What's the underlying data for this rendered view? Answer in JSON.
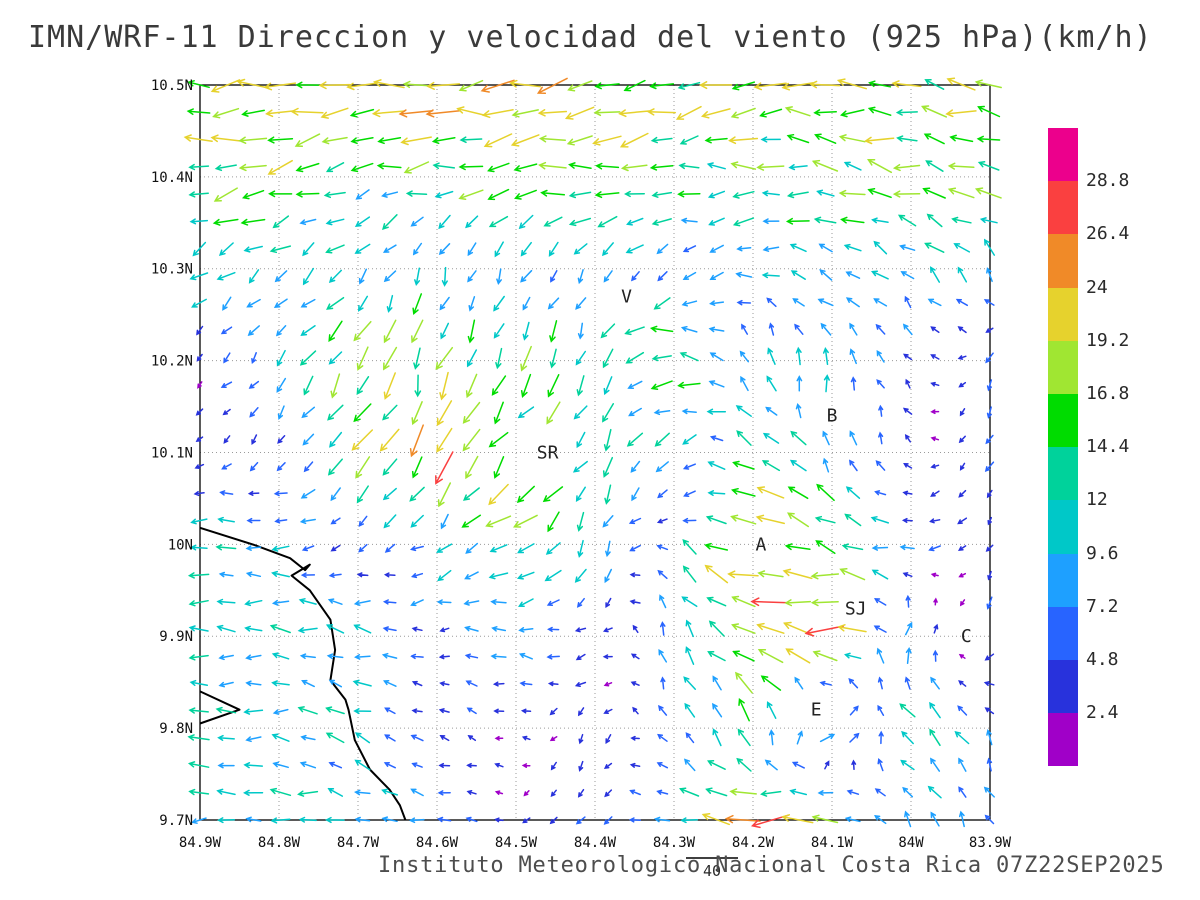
{
  "title": "IMN/WRF-11 Direccion y velocidad del viento (925 hPa)(km/h)",
  "footer": "Instituto Meteorologico Nacional Costa Rica 07Z22SEP2025",
  "chart_data": {
    "type": "vector_field",
    "title": "IMN/WRF-11 Direccion y velocidad del viento (925 hPa)(km/h)",
    "units": "km/h",
    "level": "925 hPa",
    "grid": true,
    "x_axis": {
      "tick_labels": [
        "84.9W",
        "84.8W",
        "84.7W",
        "84.6W",
        "84.5W",
        "84.4W",
        "84.3W",
        "84.2W",
        "84.1W",
        "84W",
        "83.9W"
      ],
      "tick_lon_w": [
        84.9,
        84.8,
        84.7,
        84.6,
        84.5,
        84.4,
        84.3,
        84.2,
        84.1,
        84.0,
        83.9
      ]
    },
    "y_axis": {
      "tick_labels": [
        "10.5N",
        "10.4N",
        "10.3N",
        "10.2N",
        "10.1N",
        "10N",
        "9.9N",
        "9.8N",
        "9.7N"
      ],
      "tick_lat_n": [
        10.5,
        10.4,
        10.3,
        10.2,
        10.1,
        10.0,
        9.9,
        9.8,
        9.7
      ]
    },
    "colorbar_labels_top_to_bottom": [
      "28.8",
      "26.4",
      "24",
      "19.2",
      "16.8",
      "14.4",
      "12",
      "9.6",
      "7.2",
      "4.8",
      "2.4"
    ],
    "speed_levels_kmh": [
      2.4,
      4.8,
      7.2,
      9.6,
      12,
      14.4,
      16.8,
      19.2,
      24,
      26.4,
      28.8
    ],
    "speed_colors_low_to_high": [
      "#a000c8",
      "#2832dc",
      "#2864ff",
      "#1ea0ff",
      "#00c8c8",
      "#00d29b",
      "#00dc00",
      "#a0e632",
      "#e6d22d",
      "#f08a28",
      "#fa4040",
      "#ec008c"
    ],
    "reference_vector": {
      "label": "40",
      "value_kmh": 40
    },
    "stations": [
      {
        "label": "V",
        "lon_w": 84.36,
        "lat_n": 10.27
      },
      {
        "label": "B",
        "lon_w": 84.1,
        "lat_n": 10.14
      },
      {
        "label": "SR",
        "lon_w": 84.46,
        "lat_n": 10.1
      },
      {
        "label": "A",
        "lon_w": 84.19,
        "lat_n": 10.0
      },
      {
        "label": "SJ",
        "lon_w": 84.07,
        "lat_n": 9.93
      },
      {
        "label": "C",
        "lon_w": 83.93,
        "lat_n": 9.9
      },
      {
        "label": "E",
        "lon_w": 84.12,
        "lat_n": 9.82
      }
    ],
    "coastline_w_n": [
      [
        [
          84.9,
          10.018
        ],
        [
          84.83,
          9.999
        ],
        [
          84.786,
          9.985
        ],
        [
          84.767,
          9.972
        ],
        [
          84.761,
          9.978
        ],
        [
          84.784,
          9.966
        ],
        [
          84.761,
          9.95
        ],
        [
          84.735,
          9.918
        ],
        [
          84.729,
          9.885
        ],
        [
          84.735,
          9.852
        ],
        [
          84.716,
          9.831
        ],
        [
          84.712,
          9.82
        ],
        [
          84.704,
          9.787
        ],
        [
          84.685,
          9.755
        ],
        [
          84.66,
          9.733
        ],
        [
          84.647,
          9.716
        ],
        [
          84.64,
          9.7
        ]
      ],
      [
        [
          84.9,
          9.84
        ],
        [
          84.85,
          9.82
        ],
        [
          84.9,
          9.805
        ]
      ]
    ],
    "wind_grid": {
      "lon_w": [
        84.9,
        84.8,
        84.7,
        84.6,
        84.5,
        84.4,
        84.3,
        84.2,
        84.1,
        84.0,
        83.9
      ],
      "lat_n": [
        10.5,
        10.4,
        10.3,
        10.2,
        10.1,
        10.0,
        9.9,
        9.8,
        9.7
      ],
      "u_kmh": [
        [
          -20,
          -20,
          -21,
          -21,
          -20,
          -20,
          -19,
          -19,
          -18,
          -18,
          -18
        ],
        [
          -16,
          -15,
          -14,
          -15,
          -16,
          -16,
          -15,
          -14,
          -14,
          -15,
          -16
        ],
        [
          -9,
          -8,
          -5,
          -3,
          -4,
          -5,
          -6,
          -8,
          -10,
          -8,
          -4
        ],
        [
          -2,
          -5,
          -10,
          -5,
          -7,
          -5,
          -18,
          -2,
          -2,
          -3,
          -2
        ],
        [
          -2,
          -4,
          -9,
          -6,
          -12,
          -6,
          -5,
          -12,
          -3,
          -2,
          -2
        ],
        [
          -10,
          -9,
          -3,
          -8,
          -14,
          -4,
          -6,
          -22,
          -18,
          -6,
          -2
        ],
        [
          -11,
          -11,
          -10,
          -4,
          -9,
          -3,
          -2,
          -22,
          -26,
          6,
          -3
        ],
        [
          -11,
          -11,
          -9,
          -4,
          -2,
          -2,
          -3,
          -4,
          14,
          -10,
          -4
        ],
        [
          -11,
          -11,
          -9,
          -6,
          -2,
          -3,
          -8,
          -26,
          -14,
          -4,
          -3
        ]
      ],
      "v_kmh": [
        [
          -2,
          -2,
          -1,
          -1,
          -2,
          -3,
          -3,
          -2,
          0,
          2,
          3
        ],
        [
          -4,
          -4,
          -3,
          -3,
          -3,
          -2,
          -2,
          0,
          3,
          4,
          5
        ],
        [
          -6,
          -7,
          -7,
          -8,
          -8,
          -7,
          -4,
          0,
          4,
          7,
          8
        ],
        [
          -2,
          -6,
          -14,
          -16,
          -13,
          -11,
          2,
          8,
          10,
          4,
          -5
        ],
        [
          -2,
          -4,
          -12,
          -24,
          -12,
          -10,
          -8,
          6,
          10,
          2,
          -5
        ],
        [
          2,
          1,
          -2,
          -4,
          -6,
          -10,
          4,
          8,
          6,
          -2,
          -2
        ],
        [
          0,
          0,
          2,
          0,
          1,
          -2,
          8,
          9,
          3,
          9,
          -6
        ],
        [
          1,
          1,
          3,
          1,
          1,
          -4,
          6,
          12,
          3,
          8,
          7
        ],
        [
          0,
          1,
          2,
          1,
          -1,
          -5,
          5,
          -3,
          2,
          7,
          6
        ]
      ]
    }
  }
}
